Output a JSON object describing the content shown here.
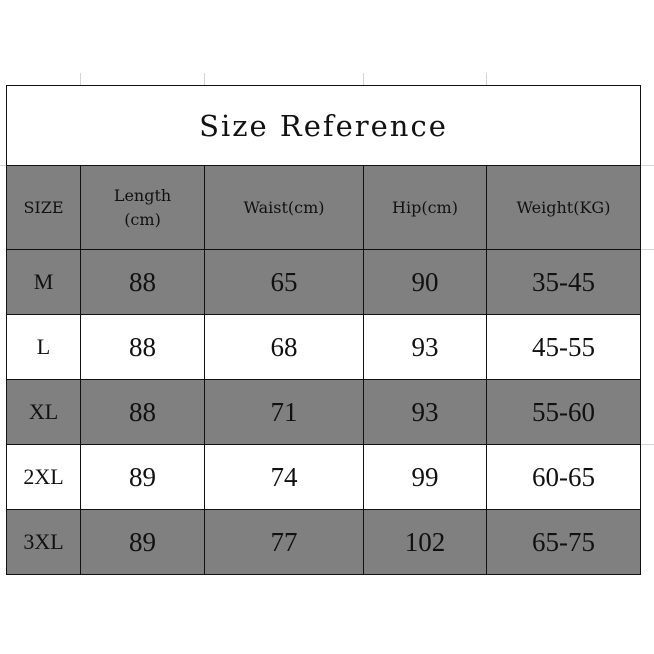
{
  "title": "Size Reference",
  "colors": {
    "header_bg": "#808080",
    "alt_bg": "#ffffff",
    "border": "#111111"
  },
  "columns": [
    "SIZE",
    "Length\n(cm)",
    "Waist(cm)",
    "Hip(cm)",
    "Weight(KG)"
  ],
  "rows": [
    [
      "M",
      "88",
      "65",
      "90",
      "35-45"
    ],
    [
      "L",
      "88",
      "68",
      "93",
      "45-55"
    ],
    [
      "XL",
      "88",
      "71",
      "93",
      "55-60"
    ],
    [
      "2XL",
      "89",
      "74",
      "99",
      "60-65"
    ],
    [
      "3XL",
      "89",
      "77",
      "102",
      "65-75"
    ]
  ]
}
